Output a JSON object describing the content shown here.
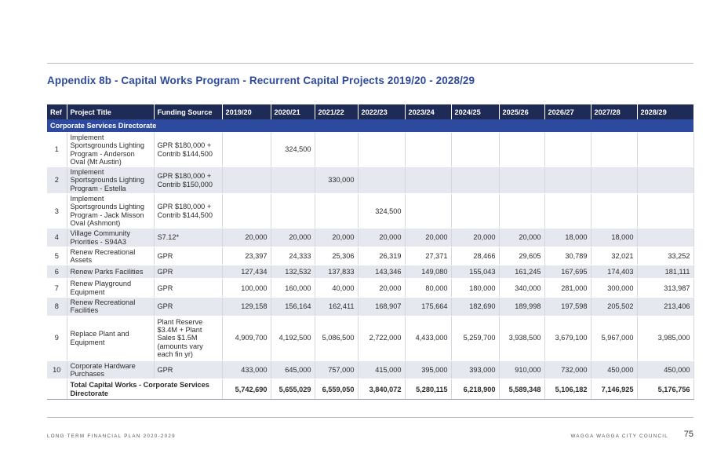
{
  "title": "Appendix 8b - Capital Works Program - Recurrent Capital Projects 2019/20 - 2028/29",
  "columns": [
    "Ref",
    "Project Title",
    "Funding Source",
    "2019/20",
    "2020/21",
    "2021/22",
    "2022/23",
    "2023/24",
    "2024/25",
    "2025/26",
    "2026/27",
    "2027/28",
    "2028/29"
  ],
  "section": "Corporate Services Directorate",
  "rows": [
    {
      "ref": "1",
      "title": "Implement Sportsgrounds Lighting Program - Anderson Oval (Mt Austin)",
      "funding": "GPR $180,000 + Contrib $144,500",
      "values": [
        "",
        "324,500",
        "",
        "",
        "",
        "",
        "",
        "",
        "",
        ""
      ]
    },
    {
      "ref": "2",
      "title": "Implement Sportsgrounds Lighting Program - Estella",
      "funding": "GPR $180,000 + Contrib $150,000",
      "values": [
        "",
        "",
        "330,000",
        "",
        "",
        "",
        "",
        "",
        "",
        ""
      ]
    },
    {
      "ref": "3",
      "title": "Implement Sportsgrounds Lighting Program - Jack Misson Oval (Ashmont)",
      "funding": "GPR $180,000 + Contrib $144,500",
      "values": [
        "",
        "",
        "",
        "324,500",
        "",
        "",
        "",
        "",
        "",
        ""
      ]
    },
    {
      "ref": "4",
      "title": "Village Community Priorities - S94A3",
      "funding": "S7.12*",
      "values": [
        "20,000",
        "20,000",
        "20,000",
        "20,000",
        "20,000",
        "20,000",
        "20,000",
        "18,000",
        "18,000",
        ""
      ]
    },
    {
      "ref": "5",
      "title": "Renew Recreational Assets",
      "funding": "GPR",
      "values": [
        "23,397",
        "24,333",
        "25,306",
        "26,319",
        "27,371",
        "28,466",
        "29,605",
        "30,789",
        "32,021",
        "33,252"
      ]
    },
    {
      "ref": "6",
      "title": "Renew Parks Facilities",
      "funding": "GPR",
      "values": [
        "127,434",
        "132,532",
        "137,833",
        "143,346",
        "149,080",
        "155,043",
        "161,245",
        "167,695",
        "174,403",
        "181,111"
      ]
    },
    {
      "ref": "7",
      "title": "Renew Playground Equipment",
      "funding": "GPR",
      "values": [
        "100,000",
        "160,000",
        "40,000",
        "20,000",
        "80,000",
        "180,000",
        "340,000",
        "281,000",
        "300,000",
        "313,987"
      ]
    },
    {
      "ref": "8",
      "title": "Renew Recreational Facilities",
      "funding": "GPR",
      "values": [
        "129,158",
        "156,164",
        "162,411",
        "168,907",
        "175,664",
        "182,690",
        "189,998",
        "197,598",
        "205,502",
        "213,406"
      ]
    },
    {
      "ref": "9",
      "title": "Replace Plant and Equipment",
      "funding": "Plant Reserve $3.4M + Plant Sales $1.5M (amounts vary each fin yr)",
      "values": [
        "4,909,700",
        "4,192,500",
        "5,086,500",
        "2,722,000",
        "4,433,000",
        "5,259,700",
        "3,938,500",
        "3,679,100",
        "5,967,000",
        "3,985,000"
      ]
    },
    {
      "ref": "10",
      "title": "Corporate Hardware Purchases",
      "funding": "GPR",
      "values": [
        "433,000",
        "645,000",
        "757,000",
        "415,000",
        "395,000",
        "393,000",
        "910,000",
        "732,000",
        "450,000",
        "450,000"
      ]
    }
  ],
  "total": {
    "label": "Total Capital Works - Corporate Services Directorate",
    "values": [
      "5,742,690",
      "5,655,029",
      "6,559,050",
      "3,840,072",
      "5,280,115",
      "6,218,900",
      "5,589,348",
      "5,106,182",
      "7,146,925",
      "5,176,756"
    ]
  },
  "footer": {
    "left": "LONG TERM FINANCIAL PLAN 2020-2029",
    "right": "WAGGA WAGGA CITY COUNCIL",
    "page": "75"
  }
}
